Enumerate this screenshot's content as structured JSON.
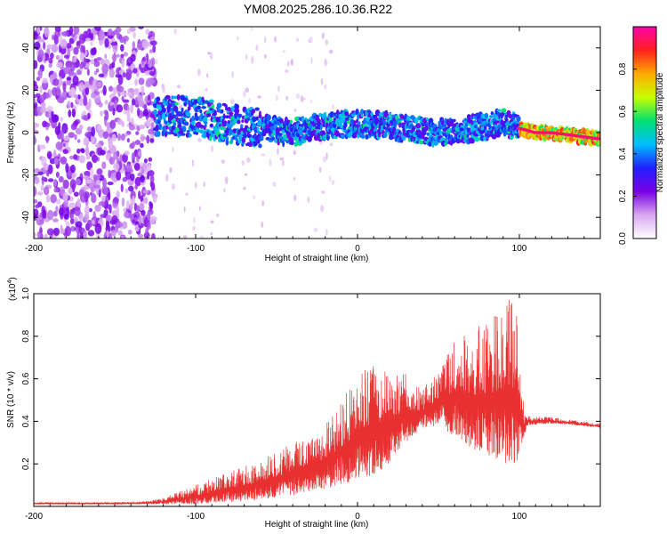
{
  "title": "YM08.2025.286.10.36.R22",
  "chart_data": [
    {
      "type": "heatmap",
      "name": "spectrogram",
      "xlabel": "Height of straight line (km)",
      "ylabel": "Frequency (Hz)",
      "xlim": [
        -200,
        150
      ],
      "ylim": [
        -50,
        50
      ],
      "xticks": [
        -200,
        -100,
        0,
        100
      ],
      "xtick_labels": [
        "-200",
        "-100",
        "0",
        "100"
      ],
      "yticks": [
        -40,
        -20,
        0,
        20,
        40
      ],
      "ytick_labels": [
        "-40",
        "-20",
        "0",
        "20",
        "40"
      ],
      "ridge": {
        "x": [
          -125,
          -110,
          -95,
          -80,
          -65,
          -50,
          -40,
          -30,
          -20,
          -10,
          0,
          10,
          20,
          30,
          40,
          50,
          60,
          70,
          80,
          90,
          100,
          110,
          120,
          130,
          140,
          150
        ],
        "y": [
          8,
          8,
          7,
          4,
          3,
          1,
          0,
          2,
          3,
          4,
          4,
          4,
          3,
          2,
          1,
          0,
          1,
          2,
          3,
          5,
          2,
          0,
          0,
          -1,
          -2,
          -3
        ]
      },
      "colorbar": {
        "label": "Normalized spectral amplitude",
        "range": [
          0,
          1
        ],
        "ticks": [
          0.0,
          0.2,
          0.4,
          0.6,
          0.8
        ],
        "tick_labels": [
          "0.0",
          "0.2",
          "0.4",
          "0.6",
          "0.8"
        ],
        "colors": [
          "#ffffff",
          "#d8a8f0",
          "#7a00e6",
          "#2020ff",
          "#00bfff",
          "#00e070",
          "#c8ff00",
          "#ffaa00",
          "#ff2020",
          "#ff00aa"
        ]
      }
    },
    {
      "type": "line",
      "name": "snr",
      "xlabel": "Height of straight line (km)",
      "ylabel": "SNR (10 * v/v)",
      "y_multiplier": "(x10",
      "y_multiplier_exp": "4",
      "xlim": [
        -200,
        150
      ],
      "ylim": [
        0,
        1.0
      ],
      "xticks": [
        -200,
        -100,
        0,
        100
      ],
      "xtick_labels": [
        "-200",
        "-100",
        "0",
        "100"
      ],
      "yticks": [
        0.2,
        0.4,
        0.6,
        0.8,
        1.0
      ],
      "ytick_labels": [
        "0.2",
        "0.4",
        "0.6",
        "0.8",
        "1.0"
      ],
      "color": "#e83030",
      "envelope": {
        "x": [
          -200,
          -150,
          -130,
          -120,
          -100,
          -80,
          -60,
          -40,
          -20,
          0,
          10,
          20,
          25,
          30,
          40,
          50,
          60,
          70,
          80,
          90,
          98,
          103,
          105,
          120,
          150
        ],
        "lower": [
          0.01,
          0.01,
          0.01,
          0.01,
          0.01,
          0.02,
          0.03,
          0.05,
          0.08,
          0.12,
          0.15,
          0.2,
          0.25,
          0.3,
          0.36,
          0.38,
          0.33,
          0.27,
          0.24,
          0.2,
          0.18,
          0.33,
          0.38,
          0.39,
          0.37
        ],
        "upper": [
          0.02,
          0.02,
          0.025,
          0.04,
          0.1,
          0.16,
          0.22,
          0.3,
          0.4,
          0.6,
          0.7,
          0.62,
          0.65,
          0.62,
          0.55,
          0.66,
          0.78,
          0.82,
          0.88,
          0.96,
          1.0,
          0.44,
          0.43,
          0.42,
          0.39
        ]
      }
    }
  ]
}
